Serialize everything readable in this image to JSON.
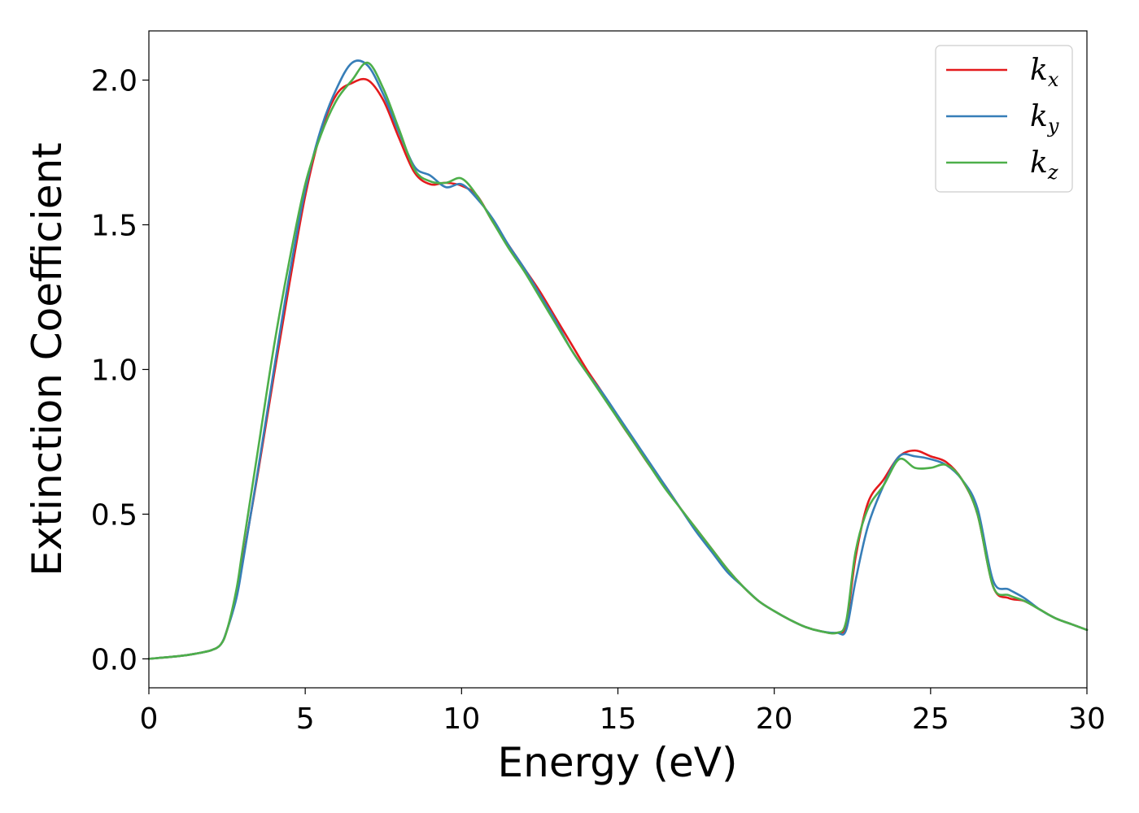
{
  "chart_data": {
    "type": "line",
    "xlabel": "Energy (eV)",
    "ylabel": "Extinction Coefficient",
    "xlim": [
      0,
      30
    ],
    "ylim": [
      -0.1,
      2.17
    ],
    "xticks": [
      0,
      5,
      10,
      15,
      20,
      25,
      30
    ],
    "xtick_labels": [
      "0",
      "5",
      "10",
      "15",
      "20",
      "25",
      "30"
    ],
    "yticks": [
      0.0,
      0.5,
      1.0,
      1.5,
      2.0
    ],
    "ytick_labels": [
      "0.0",
      "0.5",
      "1.0",
      "1.5",
      "2.0"
    ],
    "grid": false,
    "legend_position": "top-right",
    "series": [
      {
        "name": "k_x",
        "label_main": "k",
        "label_sub": "x",
        "color": "#e41a1c",
        "x": [
          0,
          1,
          1.5,
          2,
          2.3,
          2.5,
          2.8,
          3,
          3.5,
          4,
          4.5,
          5,
          5.5,
          6,
          6.5,
          7,
          7.5,
          8,
          8.5,
          9,
          9.5,
          10,
          10.5,
          11,
          11.5,
          12,
          12.5,
          13,
          13.5,
          14,
          14.5,
          15,
          15.5,
          16,
          16.5,
          17,
          17.5,
          18,
          18.5,
          19,
          19.5,
          20,
          20.5,
          21,
          21.5,
          22,
          22.3,
          22.6,
          23,
          23.5,
          24,
          24.5,
          25,
          25.5,
          26,
          26.5,
          27,
          27.5,
          28,
          28.5,
          29,
          29.5,
          30
        ],
        "y": [
          0.0,
          0.01,
          0.018,
          0.03,
          0.05,
          0.1,
          0.22,
          0.34,
          0.65,
          0.98,
          1.3,
          1.6,
          1.82,
          1.95,
          1.99,
          2.0,
          1.93,
          1.8,
          1.68,
          1.64,
          1.645,
          1.635,
          1.6,
          1.51,
          1.43,
          1.35,
          1.27,
          1.18,
          1.09,
          1.0,
          0.92,
          0.83,
          0.75,
          0.67,
          0.6,
          0.52,
          0.45,
          0.38,
          0.31,
          0.25,
          0.2,
          0.165,
          0.135,
          0.11,
          0.095,
          0.09,
          0.12,
          0.35,
          0.54,
          0.62,
          0.7,
          0.72,
          0.7,
          0.68,
          0.62,
          0.5,
          0.25,
          0.21,
          0.2,
          0.17,
          0.14,
          0.12,
          0.1
        ]
      },
      {
        "name": "k_y",
        "label_main": "k",
        "label_sub": "y",
        "color": "#377eb8",
        "x": [
          0,
          1,
          1.5,
          2,
          2.3,
          2.5,
          2.8,
          3,
          3.5,
          4,
          4.5,
          5,
          5.5,
          6,
          6.5,
          7,
          7.5,
          8,
          8.5,
          9,
          9.5,
          10,
          10.5,
          11,
          11.5,
          12,
          12.5,
          13,
          13.5,
          14,
          14.5,
          15,
          15.5,
          16,
          16.5,
          17,
          17.5,
          18,
          18.5,
          19,
          19.5,
          20,
          20.5,
          21,
          21.5,
          22,
          22.3,
          22.6,
          23,
          23.5,
          24,
          24.5,
          25,
          25.5,
          26,
          26.5,
          27,
          27.5,
          28,
          28.5,
          29,
          29.5,
          30
        ],
        "y": [
          0.0,
          0.01,
          0.018,
          0.03,
          0.05,
          0.1,
          0.21,
          0.33,
          0.66,
          1.0,
          1.33,
          1.62,
          1.83,
          1.97,
          2.06,
          2.05,
          1.95,
          1.82,
          1.7,
          1.67,
          1.63,
          1.64,
          1.59,
          1.52,
          1.43,
          1.35,
          1.26,
          1.17,
          1.07,
          0.99,
          0.92,
          0.84,
          0.76,
          0.68,
          0.6,
          0.52,
          0.44,
          0.37,
          0.3,
          0.25,
          0.2,
          0.165,
          0.135,
          0.11,
          0.095,
          0.09,
          0.1,
          0.27,
          0.46,
          0.6,
          0.7,
          0.7,
          0.69,
          0.67,
          0.62,
          0.52,
          0.27,
          0.24,
          0.21,
          0.17,
          0.14,
          0.12,
          0.1
        ]
      },
      {
        "name": "k_z",
        "label_main": "k",
        "label_sub": "z",
        "color": "#4daf4a",
        "x": [
          0,
          1,
          1.5,
          2,
          2.3,
          2.5,
          2.8,
          3,
          3.5,
          4,
          4.5,
          5,
          5.5,
          6,
          6.5,
          7,
          7.5,
          8,
          8.5,
          9,
          9.5,
          10,
          10.5,
          11,
          11.5,
          12,
          12.5,
          13,
          13.5,
          14,
          14.5,
          15,
          15.5,
          16,
          16.5,
          17,
          17.5,
          18,
          18.5,
          19,
          19.5,
          20,
          20.5,
          21,
          21.5,
          22,
          22.3,
          22.6,
          23,
          23.5,
          24,
          24.5,
          25,
          25.5,
          26,
          26.5,
          27,
          27.5,
          28,
          28.5,
          29,
          29.5,
          30
        ],
        "y": [
          0.0,
          0.01,
          0.018,
          0.03,
          0.05,
          0.1,
          0.24,
          0.38,
          0.73,
          1.08,
          1.38,
          1.64,
          1.81,
          1.93,
          2.0,
          2.06,
          1.97,
          1.83,
          1.69,
          1.65,
          1.645,
          1.66,
          1.6,
          1.51,
          1.42,
          1.34,
          1.25,
          1.16,
          1.07,
          0.99,
          0.91,
          0.83,
          0.75,
          0.67,
          0.59,
          0.52,
          0.45,
          0.38,
          0.31,
          0.25,
          0.2,
          0.165,
          0.135,
          0.11,
          0.095,
          0.09,
          0.13,
          0.37,
          0.52,
          0.6,
          0.69,
          0.66,
          0.66,
          0.67,
          0.62,
          0.5,
          0.25,
          0.22,
          0.2,
          0.17,
          0.14,
          0.12,
          0.1
        ]
      }
    ]
  }
}
